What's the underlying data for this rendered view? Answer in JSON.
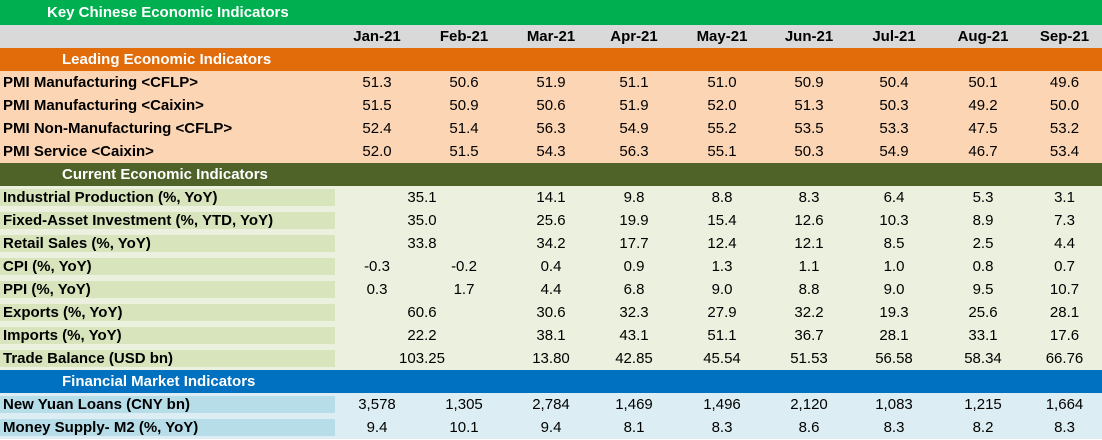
{
  "title": "Key Chinese Economic Indicators",
  "months": [
    "Jan-21",
    "Feb-21",
    "Mar-21",
    "Apr-21",
    "May-21",
    "Jun-21",
    "Jul-21",
    "Aug-21",
    "Sep-21"
  ],
  "sections": [
    {
      "name": "Leading Economic Indicators",
      "rows": [
        {
          "label": "PMI Manufacturing <CFLP>",
          "values": [
            "51.3",
            "50.6",
            "51.9",
            "51.1",
            "51.0",
            "50.9",
            "50.4",
            "50.1",
            "49.6"
          ]
        },
        {
          "label": "PMI Manufacturing <Caixin>",
          "values": [
            "51.5",
            "50.9",
            "50.6",
            "51.9",
            "52.0",
            "51.3",
            "50.3",
            "49.2",
            "50.0"
          ]
        },
        {
          "label": "PMI Non-Manufacturing <CFLP>",
          "values": [
            "52.4",
            "51.4",
            "56.3",
            "54.9",
            "55.2",
            "53.5",
            "53.3",
            "47.5",
            "53.2"
          ]
        },
        {
          "label": "PMI Service <Caixin>",
          "values": [
            "52.0",
            "51.5",
            "54.3",
            "56.3",
            "55.1",
            "50.3",
            "54.9",
            "46.7",
            "53.4"
          ]
        }
      ]
    },
    {
      "name": "Current Economic Indicators",
      "rows": [
        {
          "label": "Industrial Production (%, YoY)",
          "merged": "35.1",
          "values": [
            "14.1",
            "9.8",
            "8.8",
            "8.3",
            "6.4",
            "5.3",
            "3.1"
          ]
        },
        {
          "label": "Fixed-Asset Investment (%, YTD, YoY)",
          "merged": "35.0",
          "values": [
            "25.6",
            "19.9",
            "15.4",
            "12.6",
            "10.3",
            "8.9",
            "7.3"
          ]
        },
        {
          "label": "Retail Sales (%, YoY)",
          "merged": "33.8",
          "values": [
            "34.2",
            "17.7",
            "12.4",
            "12.1",
            "8.5",
            "2.5",
            "4.4"
          ]
        },
        {
          "label": "CPI (%, YoY)",
          "values": [
            "-0.3",
            "-0.2",
            "0.4",
            "0.9",
            "1.3",
            "1.1",
            "1.0",
            "0.8",
            "0.7"
          ]
        },
        {
          "label": "PPI (%, YoY)",
          "values": [
            "0.3",
            "1.7",
            "4.4",
            "6.8",
            "9.0",
            "8.8",
            "9.0",
            "9.5",
            "10.7"
          ]
        },
        {
          "label": "Exports (%, YoY)",
          "merged": "60.6",
          "values": [
            "30.6",
            "32.3",
            "27.9",
            "32.2",
            "19.3",
            "25.6",
            "28.1"
          ]
        },
        {
          "label": "Imports (%, YoY)",
          "merged": "22.2",
          "values": [
            "38.1",
            "43.1",
            "51.1",
            "36.7",
            "28.1",
            "33.1",
            "17.6"
          ]
        },
        {
          "label": "Trade Balance (USD bn)",
          "merged": "103.25",
          "values": [
            "13.80",
            "42.85",
            "45.54",
            "51.53",
            "56.58",
            "58.34",
            "66.76"
          ]
        }
      ]
    },
    {
      "name": "Financial Market Indicators",
      "rows": [
        {
          "label": "New Yuan Loans (CNY bn)",
          "values": [
            "3,578",
            "1,305",
            "2,784",
            "1,469",
            "1,496",
            "2,120",
            "1,083",
            "1,215",
            "1,664"
          ]
        },
        {
          "label": "Money Supply- M2 (%, YoY)",
          "values": [
            "9.4",
            "10.1",
            "9.4",
            "8.1",
            "8.3",
            "8.6",
            "8.3",
            "8.2",
            "8.3"
          ]
        }
      ]
    }
  ]
}
